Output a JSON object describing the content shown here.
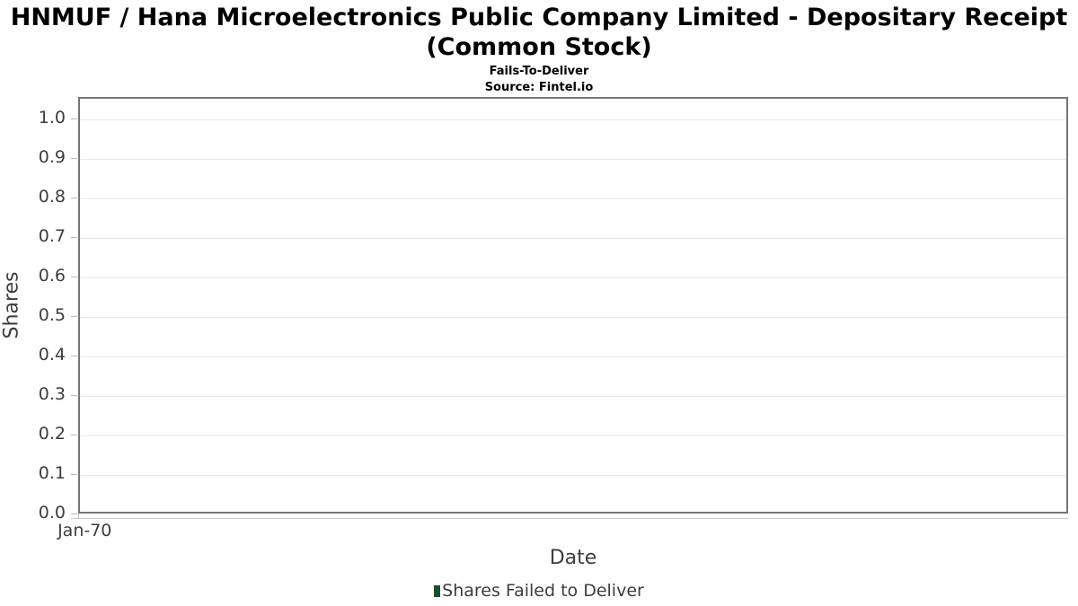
{
  "title": {
    "line1": "HNMUF / Hana Microelectronics Public Company Limited - Depositary Receipt",
    "line2": "(Common Stock)",
    "subtitle": "Fails-To-Deliver",
    "source": "Source: Fintel.io"
  },
  "chart_data": {
    "type": "bar",
    "title": "HNMUF / Hana Microelectronics Public Company Limited - Depositary Receipt (Common Stock)",
    "subtitle": "Fails-To-Deliver",
    "source": "Source: Fintel.io",
    "xlabel": "Date",
    "ylabel": "Shares",
    "x_tick_labels": [
      "Jan-70"
    ],
    "y_tick_labels": [
      "0.0",
      "0.1",
      "0.2",
      "0.3",
      "0.4",
      "0.5",
      "0.6",
      "0.7",
      "0.8",
      "0.9",
      "1.0"
    ],
    "y_tick_values": [
      0.0,
      0.1,
      0.2,
      0.3,
      0.4,
      0.5,
      0.6,
      0.7,
      0.8,
      0.9,
      1.0
    ],
    "ylim": [
      0.0,
      1.055
    ],
    "grid": true,
    "legend_position": "bottom",
    "series": [
      {
        "name": "Shares Failed to Deliver",
        "color": "#1e4d2b",
        "values": []
      }
    ],
    "categories": [
      "Jan-70"
    ],
    "note": "no data plotted - empty chart with default axis range"
  },
  "colors": {
    "plot_border": "#757575",
    "gridline": "#e8e8e8",
    "axis_text": "#3d3d3d",
    "title_text": "#000000",
    "legend_swatch": "#1e4d2b",
    "background": "#ffffff"
  }
}
